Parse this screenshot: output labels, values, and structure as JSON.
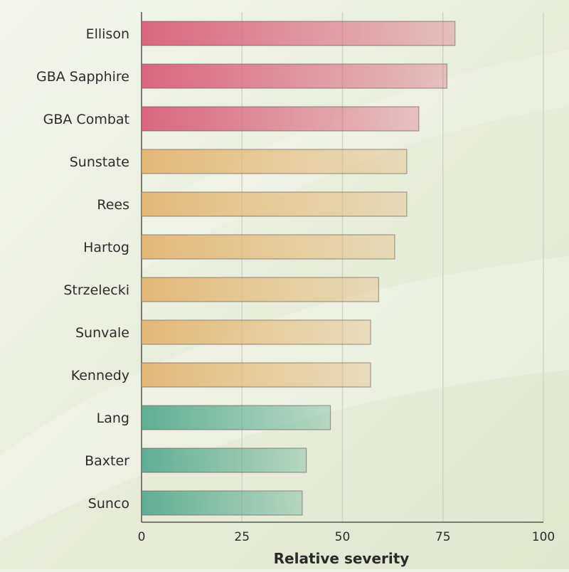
{
  "chart_data": {
    "type": "bar",
    "orientation": "horizontal",
    "categories": [
      "Ellison",
      "GBA Sapphire",
      "GBA Combat",
      "Sunstate",
      "Rees",
      "Hartog",
      "Strzelecki",
      "Sunvale",
      "Kennedy",
      "Lang",
      "Baxter",
      "Sunco"
    ],
    "values": [
      78,
      76,
      69,
      66,
      66,
      63,
      59,
      57,
      57,
      47,
      41,
      40
    ],
    "xlabel": "Relative severity",
    "ylabel": "",
    "xlim": [
      0,
      100
    ],
    "xticks": [
      0,
      25,
      50,
      75,
      100
    ],
    "grid": true,
    "bar_groups": [
      {
        "color": "#d9667e",
        "categories": [
          "Ellison",
          "GBA Sapphire",
          "GBA Combat"
        ]
      },
      {
        "color": "#e3b878",
        "categories": [
          "Sunstate",
          "Rees",
          "Hartog",
          "Strzelecki",
          "Sunvale",
          "Kennedy"
        ]
      },
      {
        "color": "#5fae94",
        "categories": [
          "Lang",
          "Baxter",
          "Sunco"
        ]
      }
    ]
  }
}
